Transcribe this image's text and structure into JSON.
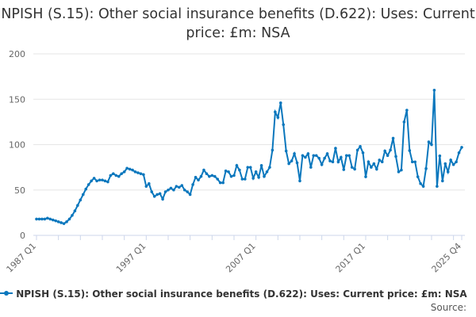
{
  "chart_data": {
    "type": "line",
    "title": "NPISH (S.15): Other social insurance benefits (D.622): Uses: Current price: £m: NSA",
    "x_start": "1987 Q1",
    "x_end": "2025 Q4",
    "x_tick_labels": [
      "1987 Q1",
      "1997 Q1",
      "2007 Q1",
      "2017 Q1",
      "2025 Q4"
    ],
    "y_ticks": [
      0,
      50,
      100,
      150,
      200
    ],
    "ylim": [
      0,
      200
    ],
    "grid": true,
    "legend_position": "bottom",
    "color": "#0a77bd",
    "series": [
      {
        "name": "NPISH (S.15): Other social insurance benefits (D.622): Uses: Current price: £m: NSA",
        "values": [
          18,
          18,
          18,
          18,
          19,
          18,
          17,
          16,
          15,
          14,
          13,
          15,
          18,
          22,
          27,
          33,
          39,
          45,
          51,
          56,
          60,
          63,
          60,
          61,
          61,
          60,
          59,
          66,
          68,
          66,
          65,
          68,
          70,
          74,
          73,
          72,
          70,
          69,
          68,
          67,
          54,
          57,
          48,
          43,
          45,
          46,
          40,
          48,
          50,
          52,
          50,
          54,
          53,
          55,
          50,
          48,
          45,
          56,
          64,
          61,
          65,
          72,
          68,
          65,
          66,
          65,
          62,
          58,
          58,
          71,
          70,
          65,
          66,
          77,
          72,
          62,
          62,
          75,
          75,
          63,
          70,
          64,
          77,
          65,
          70,
          75,
          94,
          136,
          130,
          146,
          122,
          93,
          79,
          82,
          90,
          80,
          60,
          88,
          86,
          90,
          75,
          88,
          88,
          85,
          78,
          85,
          90,
          82,
          81,
          96,
          81,
          86,
          72.5,
          88,
          88,
          75,
          73,
          94,
          98,
          91,
          64.6,
          81,
          75,
          79,
          73,
          83,
          81,
          93,
          88,
          94,
          107,
          87,
          70,
          72,
          125,
          138,
          93.5,
          81,
          81,
          64.6,
          57,
          54,
          73.6,
          103,
          100,
          160,
          54,
          87.6,
          60,
          79,
          70,
          83,
          78,
          81,
          91,
          97
        ]
      }
    ]
  },
  "source_label": "Source:"
}
